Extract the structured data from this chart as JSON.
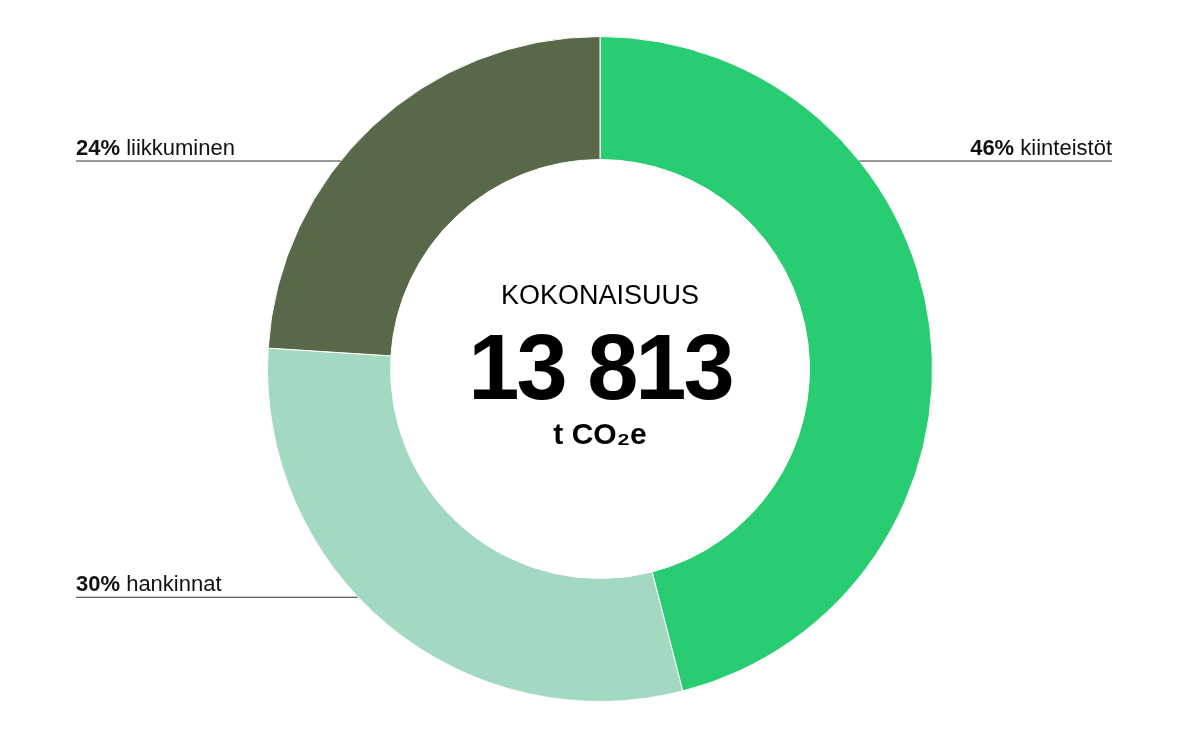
{
  "chart_data": {
    "type": "donut",
    "categories": [
      "kiinteistöt",
      "hankinnat",
      "liikkuminen"
    ],
    "values": [
      46,
      30,
      24
    ],
    "colors": [
      "#27cd70",
      "#a3d9c0",
      "#58694a"
    ],
    "value_labels": [
      "46%",
      "30%",
      "24%"
    ],
    "legend": false,
    "annotations": [
      "KOKONAISUUS",
      "13 813",
      "t CO₂e"
    ]
  }
}
